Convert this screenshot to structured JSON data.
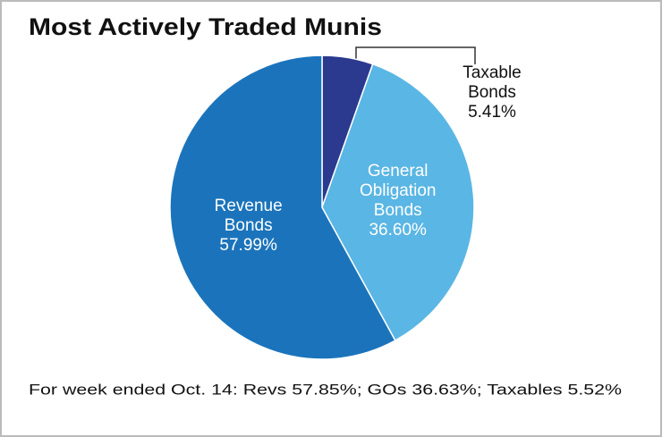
{
  "chart_data": {
    "type": "pie",
    "title": "Most Actively Traded Munis",
    "categories": [
      "Taxable Bonds",
      "General Obligation Bonds",
      "Revenue Bonds"
    ],
    "values": [
      5.41,
      36.6,
      57.99
    ],
    "value_labels": [
      "5.41%",
      "36.60%",
      "57.99%"
    ],
    "colors": [
      "#2b3a8f",
      "#5ab6e4",
      "#1b74bb"
    ],
    "footnote": "For week ended Oct. 14: Revs 57.85%; GOs 36.63%; Taxables 5.52%"
  }
}
